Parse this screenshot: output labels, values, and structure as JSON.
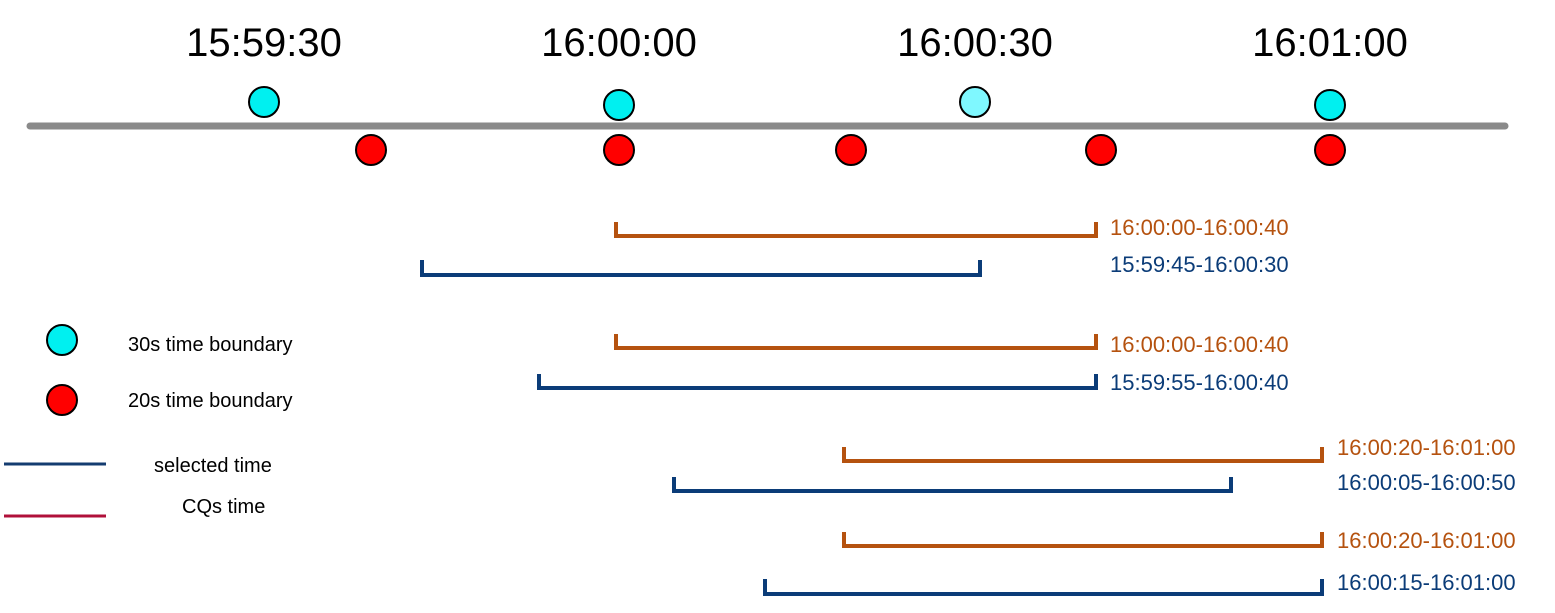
{
  "colors": {
    "axis": "#8a8a8a",
    "boundary_30s": "#00f0f0",
    "boundary_30s_light": "#7ff8ff",
    "boundary_20s": "#ff0000",
    "cq_bracket": "#b5520f",
    "selected_bracket": "#0b3c78",
    "legend_selected_line": "#143c70",
    "legend_cq_line": "#b0103a"
  },
  "timeline": {
    "ticks": [
      "15:59:30",
      "16:00:00",
      "16:00:30",
      "16:01:00"
    ]
  },
  "ranges": [
    {
      "cq": "16:00:00-16:00:40",
      "selected": "15:59:45-16:00:30"
    },
    {
      "cq": "16:00:00-16:00:40",
      "selected": "15:59:55-16:00:40"
    },
    {
      "cq": "16:00:20-16:01:00",
      "selected": "16:00:05-16:00:50"
    },
    {
      "cq": "16:00:20-16:01:00",
      "selected": "16:00:15-16:01:00"
    }
  ],
  "legend": {
    "boundary_30s": "30s time boundary",
    "boundary_20s": "20s time boundary",
    "selected_time": "selected time",
    "cqs_time": "CQs time"
  }
}
